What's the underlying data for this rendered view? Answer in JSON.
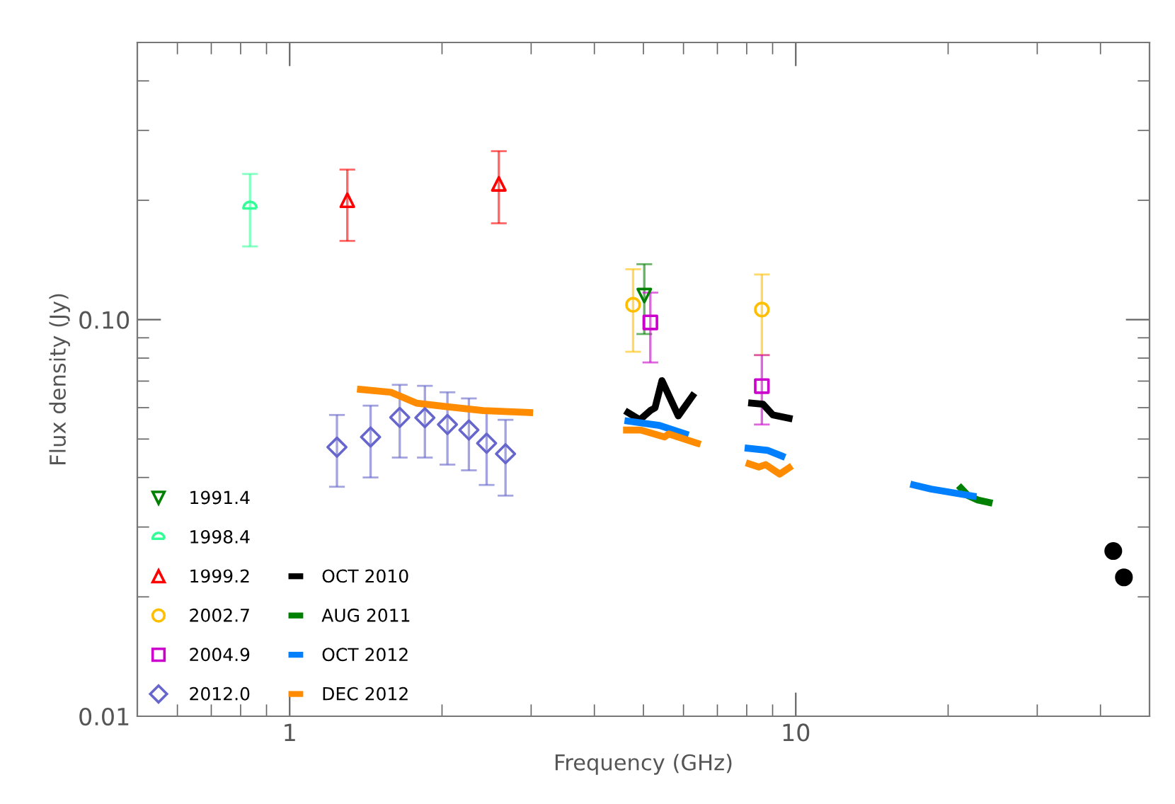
{
  "chart_data": {
    "type": "scatter",
    "xlabel": "Frequency (GHz)",
    "ylabel": "Flux density (Jy)",
    "log": "xy",
    "xlim": [
      0.5,
      50
    ],
    "ylim": [
      0.01,
      0.5
    ],
    "xticks": [
      1,
      10
    ],
    "yticks": [
      0.01,
      {
        "value": 0.1,
        "label": "0.10"
      }
    ],
    "grid": false,
    "legend": "bottom left",
    "series": [
      {
        "name": "1991.4",
        "marker": "triangle_down",
        "color": "#008000",
        "x": [
          5.02
        ],
        "values": [
          0.115
        ],
        "errors": [
          [
            0.092,
            0.138
          ]
        ]
      },
      {
        "name": "1998.4",
        "marker": "semicircle",
        "color": "#33ff99",
        "x": [
          0.835
        ],
        "values": [
          0.193
        ],
        "errors": [
          [
            0.153,
            0.233
          ]
        ]
      },
      {
        "name": "1999.2",
        "marker": "triangle",
        "color": "#ff0000",
        "x": [
          1.3,
          2.59
        ],
        "values": [
          0.2,
          0.22
        ],
        "errors": [
          [
            0.158,
            0.239
          ],
          [
            0.175,
            0.266
          ]
        ]
      },
      {
        "name": "2002.7",
        "marker": "circle",
        "color": "#ffbf00",
        "x": [
          4.77,
          8.57
        ],
        "values": [
          0.109,
          0.106
        ],
        "errors": [
          [
            0.083,
            0.134
          ],
          [
            0.0814,
            0.13
          ]
        ]
      },
      {
        "name": "2004.9",
        "marker": "square",
        "color": "#cc00cc",
        "x": [
          5.16,
          8.57
        ],
        "values": [
          0.0984,
          0.068
        ],
        "errors": [
          [
            0.078,
            0.117
          ],
          [
            0.0544,
            0.0814
          ]
        ]
      },
      {
        "name": "2012.0",
        "marker": "diamond",
        "color": "#6666cc",
        "x": [
          1.24,
          1.445,
          1.65,
          1.85,
          2.05,
          2.26,
          2.45,
          2.67
        ],
        "values": [
          0.0477,
          0.0506,
          0.0567,
          0.0566,
          0.0544,
          0.0527,
          0.0488,
          0.0459
        ],
        "errors": [
          [
            0.0379,
            0.0575
          ],
          [
            0.04,
            0.0607
          ],
          [
            0.0449,
            0.0685
          ],
          [
            0.0449,
            0.0681
          ],
          [
            0.0431,
            0.0656
          ],
          [
            0.0417,
            0.0633
          ],
          [
            0.0383,
            0.059
          ],
          [
            0.036,
            0.0559
          ]
        ]
      },
      {
        "name": "OCT 2010",
        "type": "line",
        "marker": "none",
        "color": "#000000",
        "x": [
          4.66,
          4.92,
          5.16,
          5.27,
          5.44,
          5.86,
          6.25,
          7.0,
          8.18,
          8.62,
          9.01,
          9.7
        ],
        "values": [
          0.0583,
          0.0559,
          0.059,
          0.0599,
          0.0702,
          0.0572,
          0.0642,
          null,
          0.0616,
          0.0612,
          0.0575,
          0.0564
        ]
      },
      {
        "marker": "dot",
        "color": "#000000",
        "x": [
          42.4,
          44.5
        ],
        "values": [
          0.0261,
          0.0224
        ]
      },
      {
        "name": "AUG 2011",
        "type": "line",
        "marker": "none",
        "color": "#008000",
        "x": [
          21.2,
          21.9,
          22.9,
          24.1
        ],
        "values": [
          0.0376,
          0.036,
          0.0351,
          0.0346
        ]
      },
      {
        "name": "OCT 2012",
        "type": "line",
        "marker": "none",
        "color": "#0080ff",
        "x": [
          4.66,
          5.38,
          6.05,
          7.0,
          8.05,
          8.81,
          9.39,
          12.0,
          17.1,
          18.5,
          22.4
        ],
        "values": [
          0.0555,
          0.0541,
          0.0515,
          null,
          0.0474,
          0.0468,
          0.0453,
          null,
          0.0383,
          0.0374,
          0.0359
        ]
      },
      {
        "name": "DEC 2012",
        "type": "line",
        "marker": "none",
        "color": "#ff8c00",
        "x": [
          1.38,
          1.585,
          1.78,
          2.03,
          2.41,
          2.98,
          3.5,
          4.63,
          4.94,
          5.5,
          5.61,
          6.39,
          7.0,
          8.09,
          8.45,
          8.72,
          9.01,
          9.3,
          9.7
        ],
        "values": [
          0.0667,
          0.0656,
          0.0616,
          0.0604,
          0.059,
          0.0583,
          null,
          0.0527,
          0.0527,
          0.0506,
          0.0515,
          0.0488,
          null,
          0.0433,
          0.0425,
          0.0431,
          0.0419,
          0.0408,
          0.0423
        ]
      }
    ]
  }
}
